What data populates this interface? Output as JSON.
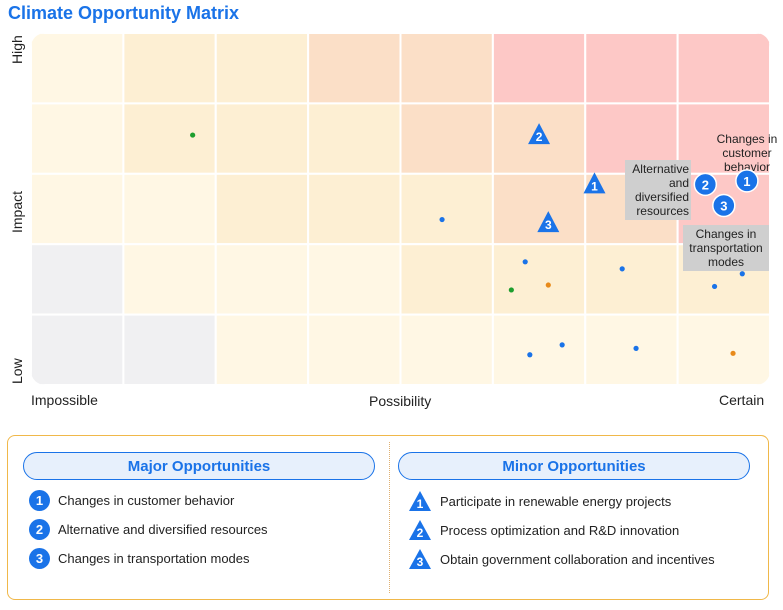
{
  "title": "Climate Opportunity Matrix",
  "chart_data": {
    "type": "scatter",
    "title": "Climate Opportunity Matrix",
    "xlabel": "Possibility",
    "ylabel": "Impact",
    "x_ticks": [
      "Impossible",
      "Possibility",
      "Certain"
    ],
    "y_ticks": [
      "Low",
      "Impact",
      "High"
    ],
    "xlim": [
      0,
      8
    ],
    "ylim": [
      0,
      5
    ],
    "grid": {
      "cols": 8,
      "rows": 5
    },
    "cell_colors": [
      [
        "#fff7e4",
        "#fdefd3",
        "#fdefd3",
        "#fbdfc7",
        "#fbdfc7",
        "#fdc8c6",
        "#fdc8c6",
        "#fdc8c6"
      ],
      [
        "#fff7e4",
        "#fdefd3",
        "#fdefd3",
        "#fdefd3",
        "#fbdfc7",
        "#fbdfc7",
        "#fdc8c6",
        "#fdc8c6"
      ],
      [
        "#fff7e4",
        "#fff7e4",
        "#fdefd3",
        "#fdefd3",
        "#fdefd3",
        "#fbdfc7",
        "#fbdfc7",
        "#fdc8c6"
      ],
      [
        "#f0f0f2",
        "#fff7e4",
        "#fff7e4",
        "#fff7e4",
        "#fdefd3",
        "#fdefd3",
        "#fdefd3",
        "#fdefd3"
      ],
      [
        "#f0f0f2",
        "#f0f0f2",
        "#fff7e4",
        "#fff7e4",
        "#fff7e4",
        "#fff7e4",
        "#fff7e4",
        "#fff7e4"
      ]
    ],
    "major": [
      {
        "id": "1",
        "x": 7.75,
        "y": 2.9,
        "label": "Changes in customer behavior"
      },
      {
        "id": "2",
        "x": 7.3,
        "y": 2.85,
        "label": "Alternative and diversified resources"
      },
      {
        "id": "3",
        "x": 7.5,
        "y": 2.55,
        "label": "Changes in transportation modes"
      }
    ],
    "minor": [
      {
        "id": "1",
        "x": 6.1,
        "y": 2.85
      },
      {
        "id": "2",
        "x": 5.5,
        "y": 3.55
      },
      {
        "id": "3",
        "x": 5.6,
        "y": 2.3
      }
    ],
    "dots": [
      {
        "x": 1.75,
        "y": 3.55,
        "color": "#1e9e2e"
      },
      {
        "x": 4.45,
        "y": 2.35,
        "color": "#1a73e8"
      },
      {
        "x": 5.35,
        "y": 1.75,
        "color": "#1a73e8"
      },
      {
        "x": 5.2,
        "y": 1.35,
        "color": "#1e9e2e"
      },
      {
        "x": 5.6,
        "y": 1.42,
        "color": "#e88a1a"
      },
      {
        "x": 6.4,
        "y": 1.65,
        "color": "#1a73e8"
      },
      {
        "x": 7.7,
        "y": 1.58,
        "color": "#1a73e8"
      },
      {
        "x": 7.4,
        "y": 1.4,
        "color": "#1a73e8"
      },
      {
        "x": 5.4,
        "y": 0.43,
        "color": "#1a73e8"
      },
      {
        "x": 5.75,
        "y": 0.57,
        "color": "#1a73e8"
      },
      {
        "x": 6.55,
        "y": 0.52,
        "color": "#1a73e8"
      },
      {
        "x": 7.6,
        "y": 0.45,
        "color": "#e88a1a"
      }
    ]
  },
  "legend": {
    "major_title": "Major Opportunities",
    "minor_title": "Minor Opportunities",
    "major_items": [
      {
        "num": "1",
        "label": "Changes in customer behavior"
      },
      {
        "num": "2",
        "label": "Alternative and diversified resources"
      },
      {
        "num": "3",
        "label": "Changes in transportation modes"
      }
    ],
    "minor_items": [
      {
        "num": "1",
        "label": "Participate in renewable energy projects"
      },
      {
        "num": "2",
        "label": "Process optimization and R&D innovation"
      },
      {
        "num": "3",
        "label": "Obtain government collaboration and incentives"
      }
    ]
  },
  "colors": {
    "accent": "#1a73e8",
    "callout_bg": "#cfcfcf",
    "legend_border": "#f0b84a"
  }
}
